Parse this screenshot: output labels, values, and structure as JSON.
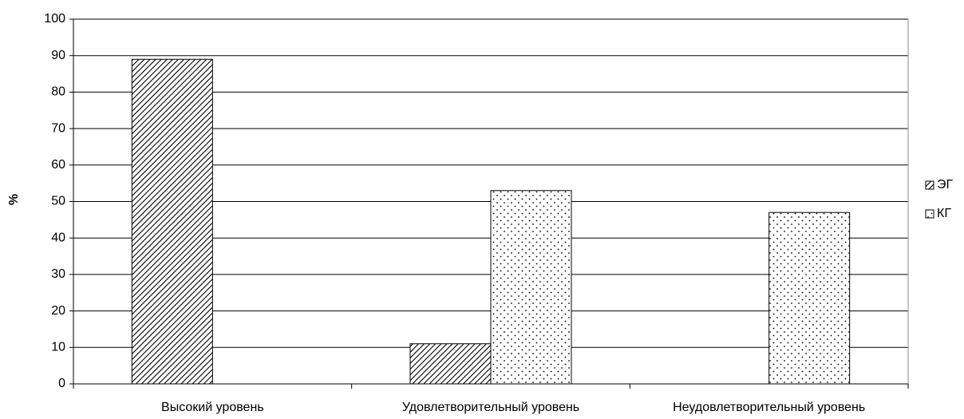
{
  "chart_data": {
    "type": "bar",
    "y_label": "%",
    "categories": [
      "Высокий уровень",
      "Удовлетворительный уровень",
      "Неудовлетворительный уровень"
    ],
    "series": [
      {
        "name": "ЭГ",
        "pattern": "hatch",
        "color": "#000000",
        "values": [
          89,
          11,
          0
        ]
      },
      {
        "name": "КГ",
        "pattern": "dots",
        "color": "#000000",
        "values": [
          0,
          53,
          47
        ]
      }
    ],
    "ylim": [
      0,
      100
    ],
    "yticks": [
      0,
      10,
      20,
      30,
      40,
      50,
      60,
      70,
      80,
      90,
      100
    ],
    "grid": true,
    "legend": "right"
  }
}
